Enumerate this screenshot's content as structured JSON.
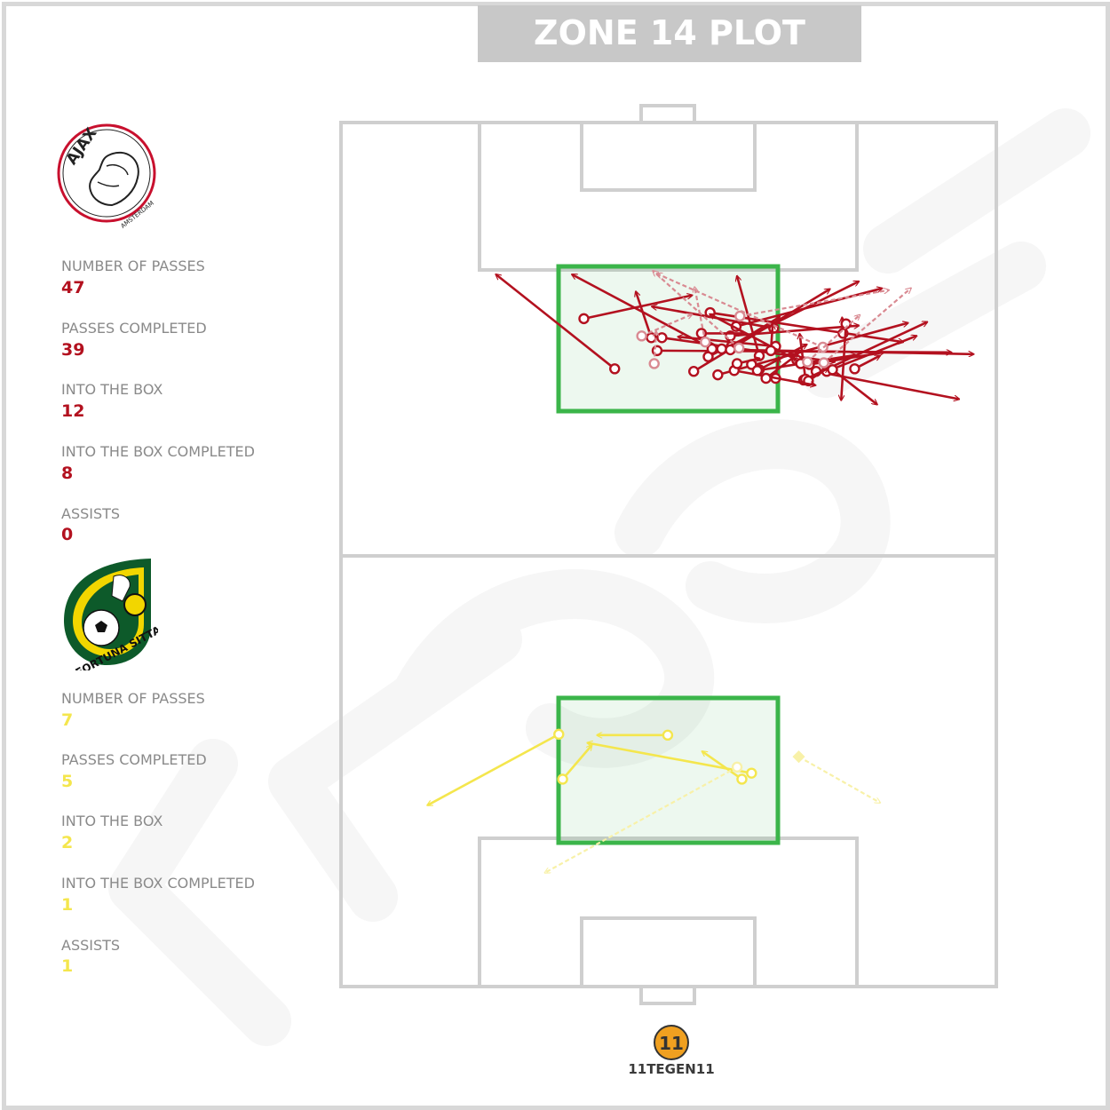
{
  "header": {
    "title": "ZONE 14 PLOT"
  },
  "home": {
    "name": "AJAX",
    "subtitle": "AMSTERDAM",
    "color": "#b3111f",
    "stats": [
      {
        "label": "NUMBER OF PASSES",
        "value": "47"
      },
      {
        "label": "PASSES COMPLETED",
        "value": "39"
      },
      {
        "label": "INTO THE BOX",
        "value": "12"
      },
      {
        "label": "INTO THE BOX COMPLETED",
        "value": "8"
      },
      {
        "label": "ASSISTS",
        "value": "0"
      }
    ]
  },
  "away": {
    "name": "FORTUNA SITTARD",
    "color": "#f4e64d",
    "stats": [
      {
        "label": "NUMBER OF PASSES",
        "value": "7"
      },
      {
        "label": "PASSES COMPLETED",
        "value": "5"
      },
      {
        "label": "INTO THE BOX",
        "value": "2"
      },
      {
        "label": "INTO THE BOX COMPLETED",
        "value": "1"
      },
      {
        "label": "ASSISTS",
        "value": "1"
      }
    ]
  },
  "brand": {
    "name": "11TEGEN11",
    "mark": "11"
  },
  "chart_data": {
    "type": "pass_map",
    "zone_color": "#3bb54a",
    "pitch": {
      "length": 100,
      "width": 68
    },
    "zone14_home": {
      "x": [
        67,
        83.5
      ],
      "y": [
        17,
        51
      ]
    },
    "zone14_away": {
      "x": [
        16.5,
        33
      ],
      "y": [
        17,
        51
      ]
    },
    "home_passes": [
      {
        "from": [
          71.5,
          28.4
        ],
        "to": [
          82.4,
          16.1
        ],
        "status": "completed"
      },
      {
        "from": [
          75.1,
          32.2
        ],
        "to": [
          80.4,
          30.6
        ],
        "status": "completed"
      },
      {
        "from": [
          75.1,
          33.3
        ],
        "to": [
          72.3,
          51.2
        ],
        "status": "completed"
      },
      {
        "from": [
          71.2,
          36.6
        ],
        "to": [
          80.7,
          50.7
        ],
        "status": "completed"
      },
      {
        "from": [
          73.6,
          32.8
        ],
        "to": [
          73.4,
          63.3
        ],
        "status": "completed"
      },
      {
        "from": [
          77.3,
          25.2
        ],
        "to": [
          80.0,
          36.4
        ],
        "status": "completed"
      },
      {
        "from": [
          78.0,
          38.3
        ],
        "to": [
          74.6,
          58.3
        ],
        "status": "completed"
      },
      {
        "from": [
          74.1,
          40.5
        ],
        "to": [
          77.5,
          45.5
        ],
        "status": "completed"
      },
      {
        "from": [
          73.0,
          43.4
        ],
        "to": [
          82.2,
          41.1
        ],
        "status": "completed"
      },
      {
        "from": [
          70.8,
          39.1
        ],
        "to": [
          76.8,
          58.8
        ],
        "status": "completed"
      },
      {
        "from": [
          71.2,
          49.3
        ],
        "to": [
          68.0,
          64.1
        ],
        "status": "completed"
      },
      {
        "from": [
          71.2,
          50.4
        ],
        "to": [
          75.3,
          59.7
        ],
        "status": "completed"
      },
      {
        "from": [
          72.9,
          38.1
        ],
        "to": [
          81.6,
          53.7
        ],
        "status": "completed"
      },
      {
        "from": [
          76.2,
          44.9
        ],
        "to": [
          78.7,
          32.3
        ],
        "status": "completed"
      },
      {
        "from": [
          74.1,
          45.1
        ],
        "to": [
          75.2,
          35.0
        ],
        "status": "completed"
      },
      {
        "from": [
          73.8,
          38.5
        ],
        "to": [
          82.4,
          24.0
        ],
        "status": "completed"
      },
      {
        "from": [
          73.8,
          39.5
        ],
        "to": [
          74.9,
          37.7
        ],
        "status": "completed"
      },
      {
        "from": [
          73.7,
          40.4
        ],
        "to": [
          73.2,
          65.6
        ],
        "status": "completed"
      },
      {
        "from": [
          75.3,
          40.4
        ],
        "to": [
          76.5,
          53.7
        ],
        "status": "completed"
      },
      {
        "from": [
          76.4,
          41.0
        ],
        "to": [
          80.8,
          56.1
        ],
        "status": "completed"
      },
      {
        "from": [
          72.0,
          48.6
        ],
        "to": [
          73.4,
          56.3
        ],
        "status": "completed"
      },
      {
        "from": [
          72.5,
          47.3
        ],
        "to": [
          77.8,
          38.3
        ],
        "status": "completed"
      },
      {
        "from": [
          73.6,
          44.6
        ],
        "to": [
          76.6,
          44.8
        ],
        "status": "completed"
      },
      {
        "from": [
          75.6,
          37.4
        ],
        "to": [
          75.6,
          41.7
        ],
        "status": "completed"
      },
      {
        "from": [
          70.4,
          45.1
        ],
        "to": [
          72.8,
          45.4
        ],
        "status": "completed"
      },
      {
        "from": [
          70.2,
          48.0
        ],
        "to": [
          76.9,
          60.8
        ],
        "status": "completed"
      },
      {
        "from": [
          70.3,
          48.2
        ],
        "to": [
          75.5,
          47.6
        ],
        "status": "completed"
      },
      {
        "from": [
          70.1,
          48.5
        ],
        "to": [
          71.6,
          50.5
        ],
        "status": "completed"
      },
      {
        "from": [
          71.5,
          53.3
        ],
        "to": [
          73.0,
          55.9
        ],
        "status": "completed"
      },
      {
        "from": [
          75.6,
          52.1
        ],
        "to": [
          77.4,
          52.0
        ],
        "status": "completed"
      },
      {
        "from": [
          71.3,
          40.8
        ],
        "to": [
          69.6,
          49.2
        ],
        "status": "completed"
      },
      {
        "from": [
          70.4,
          44.1
        ],
        "to": [
          73.2,
          47.4
        ],
        "status": "completed"
      },
      {
        "from": [
          72.0,
          42.6
        ],
        "to": [
          71.6,
          43.0
        ],
        "status": "completed"
      },
      {
        "from": [
          72.1,
          41.1
        ],
        "to": [
          72.7,
          43.4
        ],
        "status": "completed"
      },
      {
        "from": [
          71.4,
          43.4
        ],
        "to": [
          74.3,
          48.3
        ],
        "status": "completed"
      },
      {
        "from": [
          71.3,
          43.2
        ],
        "to": [
          73.1,
          53.4
        ],
        "status": "completed"
      },
      {
        "from": [
          72.1,
          47.7
        ],
        "to": [
          72.7,
          47.0
        ],
        "status": "completed"
      },
      {
        "from": [
          76.7,
          52.4
        ],
        "to": [
          67.9,
          51.9
        ],
        "status": "completed"
      },
      {
        "from": [
          71.4,
          51.0
        ],
        "to": [
          67.4,
          55.6
        ],
        "status": "completed"
      },
      {
        "from": [
          75.3,
          31.2
        ],
        "to": [
          77.8,
          36.4
        ],
        "status": "incomplete"
      },
      {
        "from": [
          74.6,
          37.8
        ],
        "to": [
          80.9,
          36.7
        ],
        "status": "incomplete"
      },
      {
        "from": [
          72.1,
          32.5
        ],
        "to": [
          75.8,
          32.7
        ],
        "status": "incomplete"
      },
      {
        "from": [
          73.9,
          41.3
        ],
        "to": [
          82.8,
          32.4
        ],
        "status": "incomplete"
      },
      {
        "from": [
          74.0,
          50.0
        ],
        "to": [
          82.5,
          32.8
        ],
        "status": "incomplete"
      },
      {
        "from": [
          72.2,
          50.1
        ],
        "to": [
          80.8,
          59.1
        ],
        "status": "incomplete"
      },
      {
        "from": [
          72.3,
          48.4
        ],
        "to": [
          77.7,
          53.8
        ],
        "status": "incomplete"
      },
      {
        "from": [
          77.6,
          41.4
        ],
        "to": [
          80.6,
          56.8
        ],
        "status": "incomplete"
      }
    ],
    "away_passes": [
      {
        "from": [
          29.2,
          22.6
        ],
        "to": [
          21.0,
          9.0
        ],
        "status": "completed"
      },
      {
        "from": [
          24.0,
          23.0
        ],
        "to": [
          27.9,
          26.0
        ],
        "status": "completed"
      },
      {
        "from": [
          24.7,
          42.6
        ],
        "to": [
          28.2,
          25.6
        ],
        "status": "completed"
      },
      {
        "from": [
          24.0,
          41.6
        ],
        "to": [
          27.2,
          37.5
        ],
        "status": "completed"
      },
      {
        "from": [
          29.1,
          33.9
        ],
        "to": [
          29.1,
          26.6
        ],
        "status": "completed"
      },
      {
        "from": [
          25.4,
          41.1
        ],
        "to": [
          13.2,
          21.2
        ],
        "status": "incomplete"
      },
      {
        "from": [
          26.6,
          47.5
        ],
        "to": [
          21.3,
          55.9
        ],
        "status": "incomplete"
      }
    ]
  }
}
